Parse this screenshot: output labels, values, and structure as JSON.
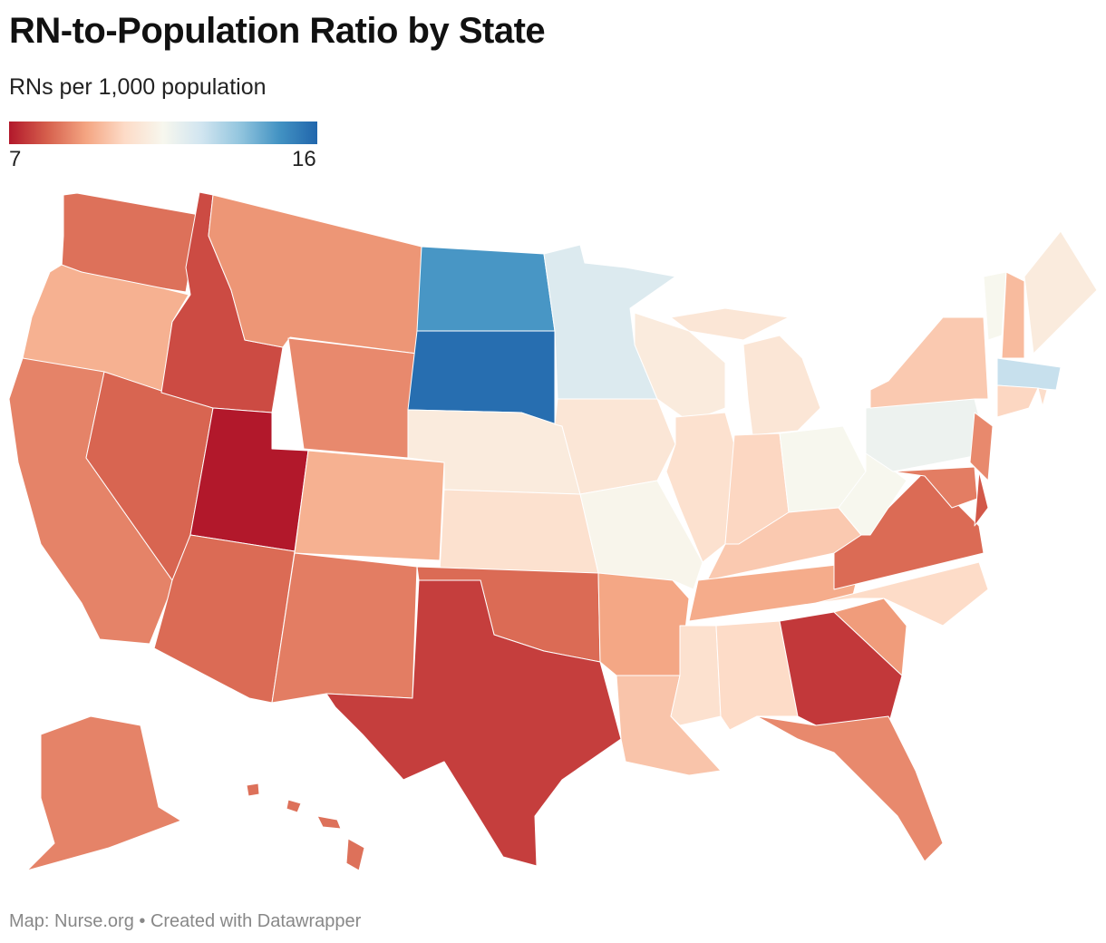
{
  "header": {
    "title": "RN-to-Population Ratio by State",
    "subtitle": "RNs per 1,000 population"
  },
  "legend": {
    "min_label": "7",
    "max_label": "16",
    "min": 7,
    "max": 16,
    "colors": [
      "#b2182b",
      "#d6604d",
      "#f4a582",
      "#fddbc7",
      "#f7f7ee",
      "#d1e5f0",
      "#92c5de",
      "#4393c3",
      "#2166ac"
    ]
  },
  "footer": {
    "source": "Map: Nurse.org • Created with Datawrapper"
  },
  "chart_data": {
    "type": "choropleth",
    "title": "RN-to-Population Ratio by State",
    "subtitle": "RNs per 1,000 population",
    "values": {
      "UT": 7.0,
      "GA": 7.5,
      "TX": 7.6,
      "ID": 7.8,
      "DE": 8.0,
      "NV": 8.2,
      "AZ": 8.3,
      "OK": 8.3,
      "VA": 8.3,
      "WA": 8.4,
      "HI": 8.4,
      "MD": 8.6,
      "NM": 8.6,
      "AK": 8.7,
      "CA": 8.7,
      "FL": 8.8,
      "WY": 8.8,
      "NJ": 8.8,
      "MT": 9.0,
      "SC": 9.1,
      "AR": 9.3,
      "TN": 9.4,
      "OR": 9.5,
      "CO": 9.5,
      "NH": 9.7,
      "LA": 9.9,
      "KY": 10.0,
      "NY": 10.0,
      "IN": 10.3,
      "CT": 10.3,
      "AL": 10.4,
      "NC": 10.4,
      "RI": 10.5,
      "KS": 10.6,
      "MS": 10.6,
      "IL": 10.6,
      "IA": 10.8,
      "MI": 10.8,
      "WI": 11.0,
      "NE": 11.0,
      "ME": 11.0,
      "MO": 11.4,
      "OH": 11.5,
      "WV": 11.5,
      "VT": 11.5,
      "PA": 11.8,
      "MN": 12.3,
      "MA": 12.8,
      "ND": 14.8,
      "SD": 15.8
    }
  }
}
